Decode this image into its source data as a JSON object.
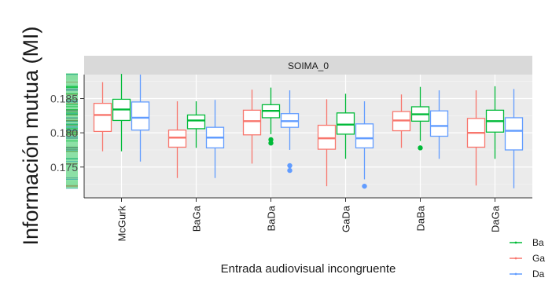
{
  "chart_data": {
    "type": "boxplot",
    "facet_label": "SOIMA_0",
    "ylabel": "Información mutua (MI)",
    "xlabel": "Entrada audiovisual incongruente",
    "ylim": [
      0.1705,
      0.1885
    ],
    "yticks": [
      0.175,
      0.18,
      0.185
    ],
    "ytick_labels": [
      "0.175",
      "0.180",
      "0.185"
    ],
    "grid": true,
    "legend_position": "bottom-right",
    "categories": [
      "McGurk",
      "BaGa",
      "BaDa",
      "GaDa",
      "DaBa",
      "DaGa"
    ],
    "series": [
      {
        "name": "Ba",
        "color": "#00ba38",
        "boxes": [
          {
            "min": 0.1773,
            "q1": 0.1818,
            "median": 0.1834,
            "q3": 0.1849,
            "max": 0.1886,
            "outliers": []
          },
          {
            "min": 0.1778,
            "q1": 0.1806,
            "median": 0.1818,
            "q3": 0.1826,
            "max": 0.1846,
            "outliers": []
          },
          {
            "min": 0.1798,
            "q1": 0.1822,
            "median": 0.1832,
            "q3": 0.1841,
            "max": 0.1866,
            "outliers": [
              0.179,
              0.1785
            ]
          },
          {
            "min": 0.1762,
            "q1": 0.1798,
            "median": 0.1812,
            "q3": 0.1829,
            "max": 0.1857,
            "outliers": []
          },
          {
            "min": 0.1788,
            "q1": 0.1817,
            "median": 0.1827,
            "q3": 0.1838,
            "max": 0.1867,
            "outliers": [
              0.1778
            ]
          },
          {
            "min": 0.1762,
            "q1": 0.1801,
            "median": 0.1817,
            "q3": 0.1833,
            "max": 0.1868,
            "outliers": []
          }
        ]
      },
      {
        "name": "Ga",
        "color": "#f8766d",
        "boxes": [
          {
            "min": 0.1773,
            "q1": 0.1802,
            "median": 0.1826,
            "q3": 0.1843,
            "max": 0.1874,
            "outliers": []
          },
          {
            "min": 0.1734,
            "q1": 0.1779,
            "median": 0.1793,
            "q3": 0.1804,
            "max": 0.1846,
            "outliers": []
          },
          {
            "min": 0.1755,
            "q1": 0.1797,
            "median": 0.1817,
            "q3": 0.1833,
            "max": 0.1863,
            "outliers": []
          },
          {
            "min": 0.1722,
            "q1": 0.1776,
            "median": 0.1792,
            "q3": 0.1811,
            "max": 0.1849,
            "outliers": []
          },
          {
            "min": 0.1778,
            "q1": 0.1803,
            "median": 0.1818,
            "q3": 0.1831,
            "max": 0.1856,
            "outliers": []
          },
          {
            "min": 0.1723,
            "q1": 0.1779,
            "median": 0.18,
            "q3": 0.1821,
            "max": 0.1862,
            "outliers": []
          }
        ]
      },
      {
        "name": "Da",
        "color": "#619cff",
        "boxes": [
          {
            "min": 0.1758,
            "q1": 0.1804,
            "median": 0.1822,
            "q3": 0.1845,
            "max": 0.1885,
            "outliers": []
          },
          {
            "min": 0.1734,
            "q1": 0.1778,
            "median": 0.1793,
            "q3": 0.1808,
            "max": 0.1848,
            "outliers": []
          },
          {
            "min": 0.1775,
            "q1": 0.1808,
            "median": 0.1817,
            "q3": 0.1828,
            "max": 0.1862,
            "outliers": [
              0.1752,
              0.1745
            ]
          },
          {
            "min": 0.1732,
            "q1": 0.1778,
            "median": 0.1792,
            "q3": 0.1813,
            "max": 0.1846,
            "outliers": [
              0.1722
            ]
          },
          {
            "min": 0.1762,
            "q1": 0.1795,
            "median": 0.181,
            "q3": 0.1832,
            "max": 0.1862,
            "outliers": []
          },
          {
            "min": 0.1719,
            "q1": 0.1775,
            "median": 0.1803,
            "q3": 0.1822,
            "max": 0.1864,
            "outliers": []
          }
        ]
      }
    ],
    "legend": [
      {
        "label": "Ba",
        "color": "#00ba38"
      },
      {
        "label": "Ga",
        "color": "#f8766d"
      },
      {
        "label": "Da",
        "color": "#619cff"
      }
    ]
  }
}
